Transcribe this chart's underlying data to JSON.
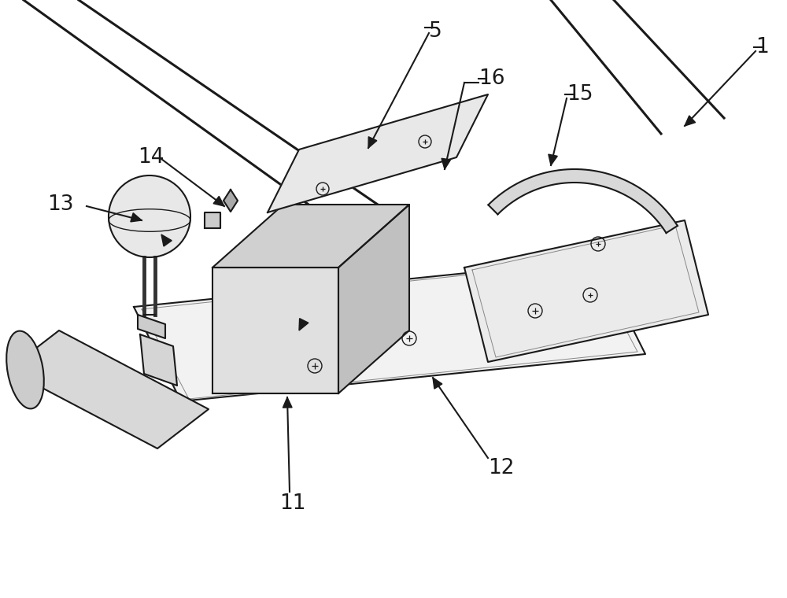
{
  "bg_color": "#ffffff",
  "line_color": "#1a1a1a",
  "line_width": 1.5
}
